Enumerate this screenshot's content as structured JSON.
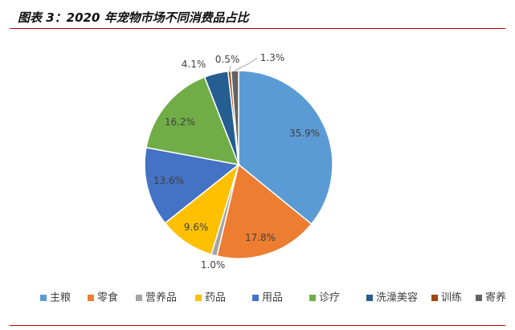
{
  "figure_title": "图表 3：2020 年宠物市场不同消费品占比",
  "chart_data": {
    "type": "pie",
    "title": "",
    "legend_position": "bottom",
    "slices": [
      {
        "label": "主粮",
        "value": 35.9,
        "label_text": "35.9%",
        "color": "#5b9bd5"
      },
      {
        "label": "零食",
        "value": 17.8,
        "label_text": "17.8%",
        "color": "#ed7d31"
      },
      {
        "label": "营养品",
        "value": 1.0,
        "label_text": "1.0%",
        "color": "#a5a5a5"
      },
      {
        "label": "药品",
        "value": 9.6,
        "label_text": "9.6%",
        "color": "#ffc000"
      },
      {
        "label": "用品",
        "value": 13.6,
        "label_text": "13.6%",
        "color": "#4472c4"
      },
      {
        "label": "诊疗",
        "value": 16.2,
        "label_text": "16.2%",
        "color": "#70ad47"
      },
      {
        "label": "洗澡美容",
        "value": 4.1,
        "label_text": "4.1%",
        "color": "#255e91"
      },
      {
        "label": "训练",
        "value": 0.5,
        "label_text": "0.5%",
        "color": "#9e480e"
      },
      {
        "label": "寄养",
        "value": 1.3,
        "label_text": "1.3%",
        "color": "#636363"
      }
    ]
  }
}
